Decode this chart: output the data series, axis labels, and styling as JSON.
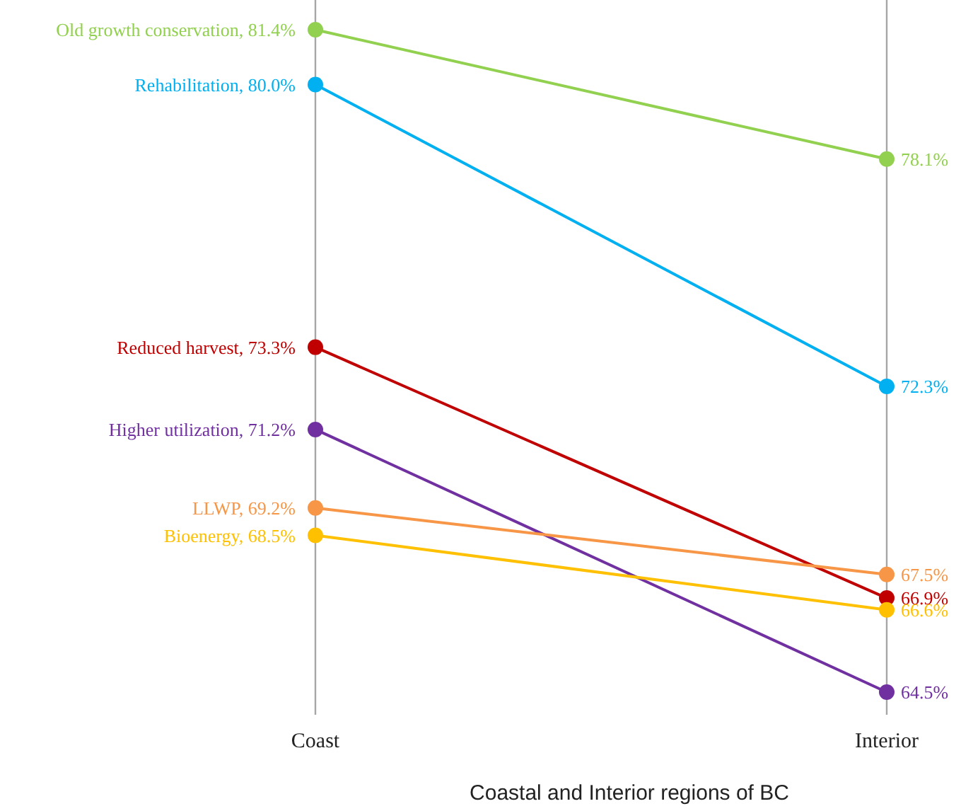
{
  "chart_data": {
    "type": "line",
    "xlabel": "Coastal and Interior regions of BC",
    "categories": [
      "Coast",
      "Interior"
    ],
    "grid": "x",
    "marker": "circle",
    "line_style": "solid",
    "series": [
      {
        "name": "Old growth conservation,",
        "color": "#92d050",
        "values": [
          81.4,
          78.1
        ],
        "value_labels": [
          "81.4%",
          "78.1%"
        ]
      },
      {
        "name": "Rehabilitation,",
        "color": "#00b0f0",
        "values": [
          80.0,
          72.3
        ],
        "value_labels": [
          "80.0%",
          "72.3%"
        ]
      },
      {
        "name": "Reduced harvest,",
        "color": "#c00000",
        "values": [
          73.3,
          66.9
        ],
        "value_labels": [
          "73.3%",
          "66.9%"
        ]
      },
      {
        "name": "Higher utilization,",
        "color": "#7030a0",
        "values": [
          71.2,
          64.5
        ],
        "value_labels": [
          "71.2%",
          "64.5%"
        ]
      },
      {
        "name": "LLWP,",
        "color": "#f79646",
        "values": [
          69.2,
          67.5
        ],
        "value_labels": [
          "69.2%",
          "67.5%"
        ]
      },
      {
        "name": "Bioenergy,",
        "color": "#ffc000",
        "values": [
          68.5,
          66.6
        ],
        "value_labels": [
          "68.5%",
          "66.6%"
        ]
      }
    ]
  }
}
